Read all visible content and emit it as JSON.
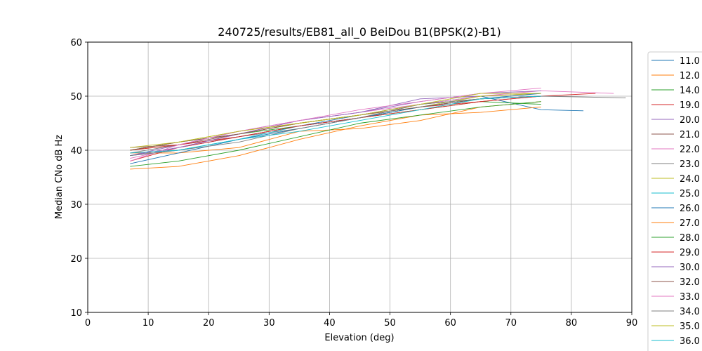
{
  "chart_data": {
    "type": "line",
    "title": "240725/results/EB81_all_0 BeiDou B1(BPSK(2)-B1)",
    "xlabel": "Elevation (deg)",
    "ylabel": "Median CNo dB Hz",
    "xlim": [
      0,
      90
    ],
    "ylim": [
      10,
      60
    ],
    "xticks": [
      "0",
      "10",
      "20",
      "30",
      "40",
      "50",
      "60",
      "70",
      "80",
      "90"
    ],
    "yticks": [
      "10",
      "20",
      "30",
      "40",
      "50",
      "60"
    ],
    "grid": true,
    "legend_position": "right, outside plot",
    "series": [
      {
        "name": "11.0",
        "color": "#1f77b4",
        "x": [
          7,
          15,
          25,
          35,
          45,
          55,
          65,
          75,
          82
        ],
        "y": [
          39.0,
          40.5,
          42.5,
          44.5,
          46.5,
          48.5,
          50.0,
          47.5,
          47.3
        ]
      },
      {
        "name": "12.0",
        "color": "#ff7f0e",
        "x": [
          7,
          15,
          25,
          35,
          45,
          55,
          65,
          75
        ],
        "y": [
          39.5,
          39.5,
          40.5,
          43.5,
          44.0,
          45.5,
          48.0,
          49.0
        ]
      },
      {
        "name": "14.0",
        "color": "#2ca02c",
        "x": [
          7,
          15,
          25,
          35,
          45,
          55,
          65,
          75
        ],
        "y": [
          40.0,
          41.5,
          43.0,
          44.5,
          46.0,
          47.5,
          49.0,
          48.5
        ]
      },
      {
        "name": "19.0",
        "color": "#d62728",
        "x": [
          7,
          15,
          25,
          35,
          45,
          55,
          65,
          75,
          84
        ],
        "y": [
          38.0,
          40.5,
          42.5,
          44.5,
          46.0,
          48.0,
          49.0,
          50.0,
          50.5
        ]
      },
      {
        "name": "20.0",
        "color": "#9467bd",
        "x": [
          7,
          15,
          25,
          35,
          45,
          55,
          65,
          75
        ],
        "y": [
          39.0,
          41.0,
          43.5,
          45.5,
          47.0,
          49.5,
          50.0,
          50.5
        ]
      },
      {
        "name": "21.0",
        "color": "#8c564b",
        "x": [
          7,
          15,
          25,
          35,
          45,
          55,
          65,
          75
        ],
        "y": [
          40.5,
          41.0,
          43.0,
          45.0,
          46.5,
          48.5,
          49.5,
          50.0
        ]
      },
      {
        "name": "22.0",
        "color": "#e377c2",
        "x": [
          7,
          15,
          25,
          35,
          45,
          55,
          65,
          75,
          87
        ],
        "y": [
          38.5,
          40.5,
          43.0,
          45.5,
          47.0,
          48.5,
          50.0,
          51.0,
          50.5
        ]
      },
      {
        "name": "23.0",
        "color": "#7f7f7f",
        "x": [
          7,
          15,
          25,
          35,
          45,
          55,
          65,
          75,
          89
        ],
        "y": [
          39.5,
          41.0,
          42.5,
          44.0,
          46.0,
          48.5,
          49.5,
          50.0,
          49.7
        ]
      },
      {
        "name": "24.0",
        "color": "#bcbd22",
        "x": [
          7,
          15,
          25,
          35,
          45,
          55,
          65,
          75
        ],
        "y": [
          40.0,
          41.5,
          43.5,
          45.0,
          46.5,
          48.0,
          50.0,
          50.5
        ]
      },
      {
        "name": "25.0",
        "color": "#17becf",
        "x": [
          7,
          15,
          25,
          35,
          45,
          55,
          65,
          75
        ],
        "y": [
          39.0,
          40.0,
          42.0,
          44.5,
          46.0,
          48.0,
          49.5,
          50.0
        ]
      },
      {
        "name": "26.0",
        "color": "#1f77b4",
        "x": [
          7,
          15,
          25,
          35,
          45,
          55,
          65,
          75
        ],
        "y": [
          37.5,
          39.5,
          42.0,
          44.0,
          46.0,
          48.0,
          49.5,
          50.5
        ]
      },
      {
        "name": "27.0",
        "color": "#ff7f0e",
        "x": [
          7,
          15,
          25,
          35,
          45,
          55,
          65,
          75
        ],
        "y": [
          36.5,
          37.0,
          39.0,
          42.0,
          44.5,
          46.5,
          47.0,
          48.0
        ]
      },
      {
        "name": "28.0",
        "color": "#2ca02c",
        "x": [
          7,
          15,
          25,
          35,
          45,
          55,
          65,
          75
        ],
        "y": [
          37.0,
          38.0,
          40.0,
          42.5,
          45.0,
          46.5,
          48.0,
          49.0
        ]
      },
      {
        "name": "29.0",
        "color": "#d62728",
        "x": [
          7,
          15,
          25,
          35,
          45,
          55,
          65,
          75
        ],
        "y": [
          40.0,
          41.0,
          42.5,
          44.5,
          46.0,
          47.5,
          49.0,
          50.0
        ]
      },
      {
        "name": "30.0",
        "color": "#9467bd",
        "x": [
          7,
          15,
          25,
          35,
          45,
          55,
          65,
          75
        ],
        "y": [
          39.0,
          40.5,
          43.0,
          45.5,
          47.0,
          49.0,
          50.5,
          51.0
        ]
      },
      {
        "name": "32.0",
        "color": "#8c564b",
        "x": [
          7,
          15,
          25,
          35,
          45,
          55,
          65,
          75
        ],
        "y": [
          40.0,
          41.5,
          43.0,
          45.0,
          46.5,
          48.0,
          49.5,
          50.0
        ]
      },
      {
        "name": "33.0",
        "color": "#e377c2",
        "x": [
          7,
          15,
          25,
          35,
          45,
          55,
          65,
          75
        ],
        "y": [
          38.0,
          41.0,
          43.5,
          45.5,
          47.5,
          49.0,
          50.5,
          51.5
        ]
      },
      {
        "name": "34.0",
        "color": "#7f7f7f",
        "x": [
          7,
          15,
          25,
          35,
          45,
          55,
          65,
          75
        ],
        "y": [
          39.0,
          40.0,
          41.5,
          44.0,
          46.0,
          48.5,
          49.5,
          50.0
        ]
      },
      {
        "name": "35.0",
        "color": "#bcbd22",
        "x": [
          7,
          15,
          25,
          35,
          45,
          55,
          65,
          75
        ],
        "y": [
          40.5,
          41.5,
          43.5,
          45.0,
          46.5,
          48.5,
          50.5,
          50.5
        ]
      },
      {
        "name": "36.0",
        "color": "#17becf",
        "x": [
          7,
          15,
          25,
          35,
          45,
          55,
          65,
          75
        ],
        "y": [
          39.5,
          40.0,
          42.0,
          43.5,
          45.5,
          47.5,
          49.5,
          50.0
        ]
      }
    ]
  }
}
